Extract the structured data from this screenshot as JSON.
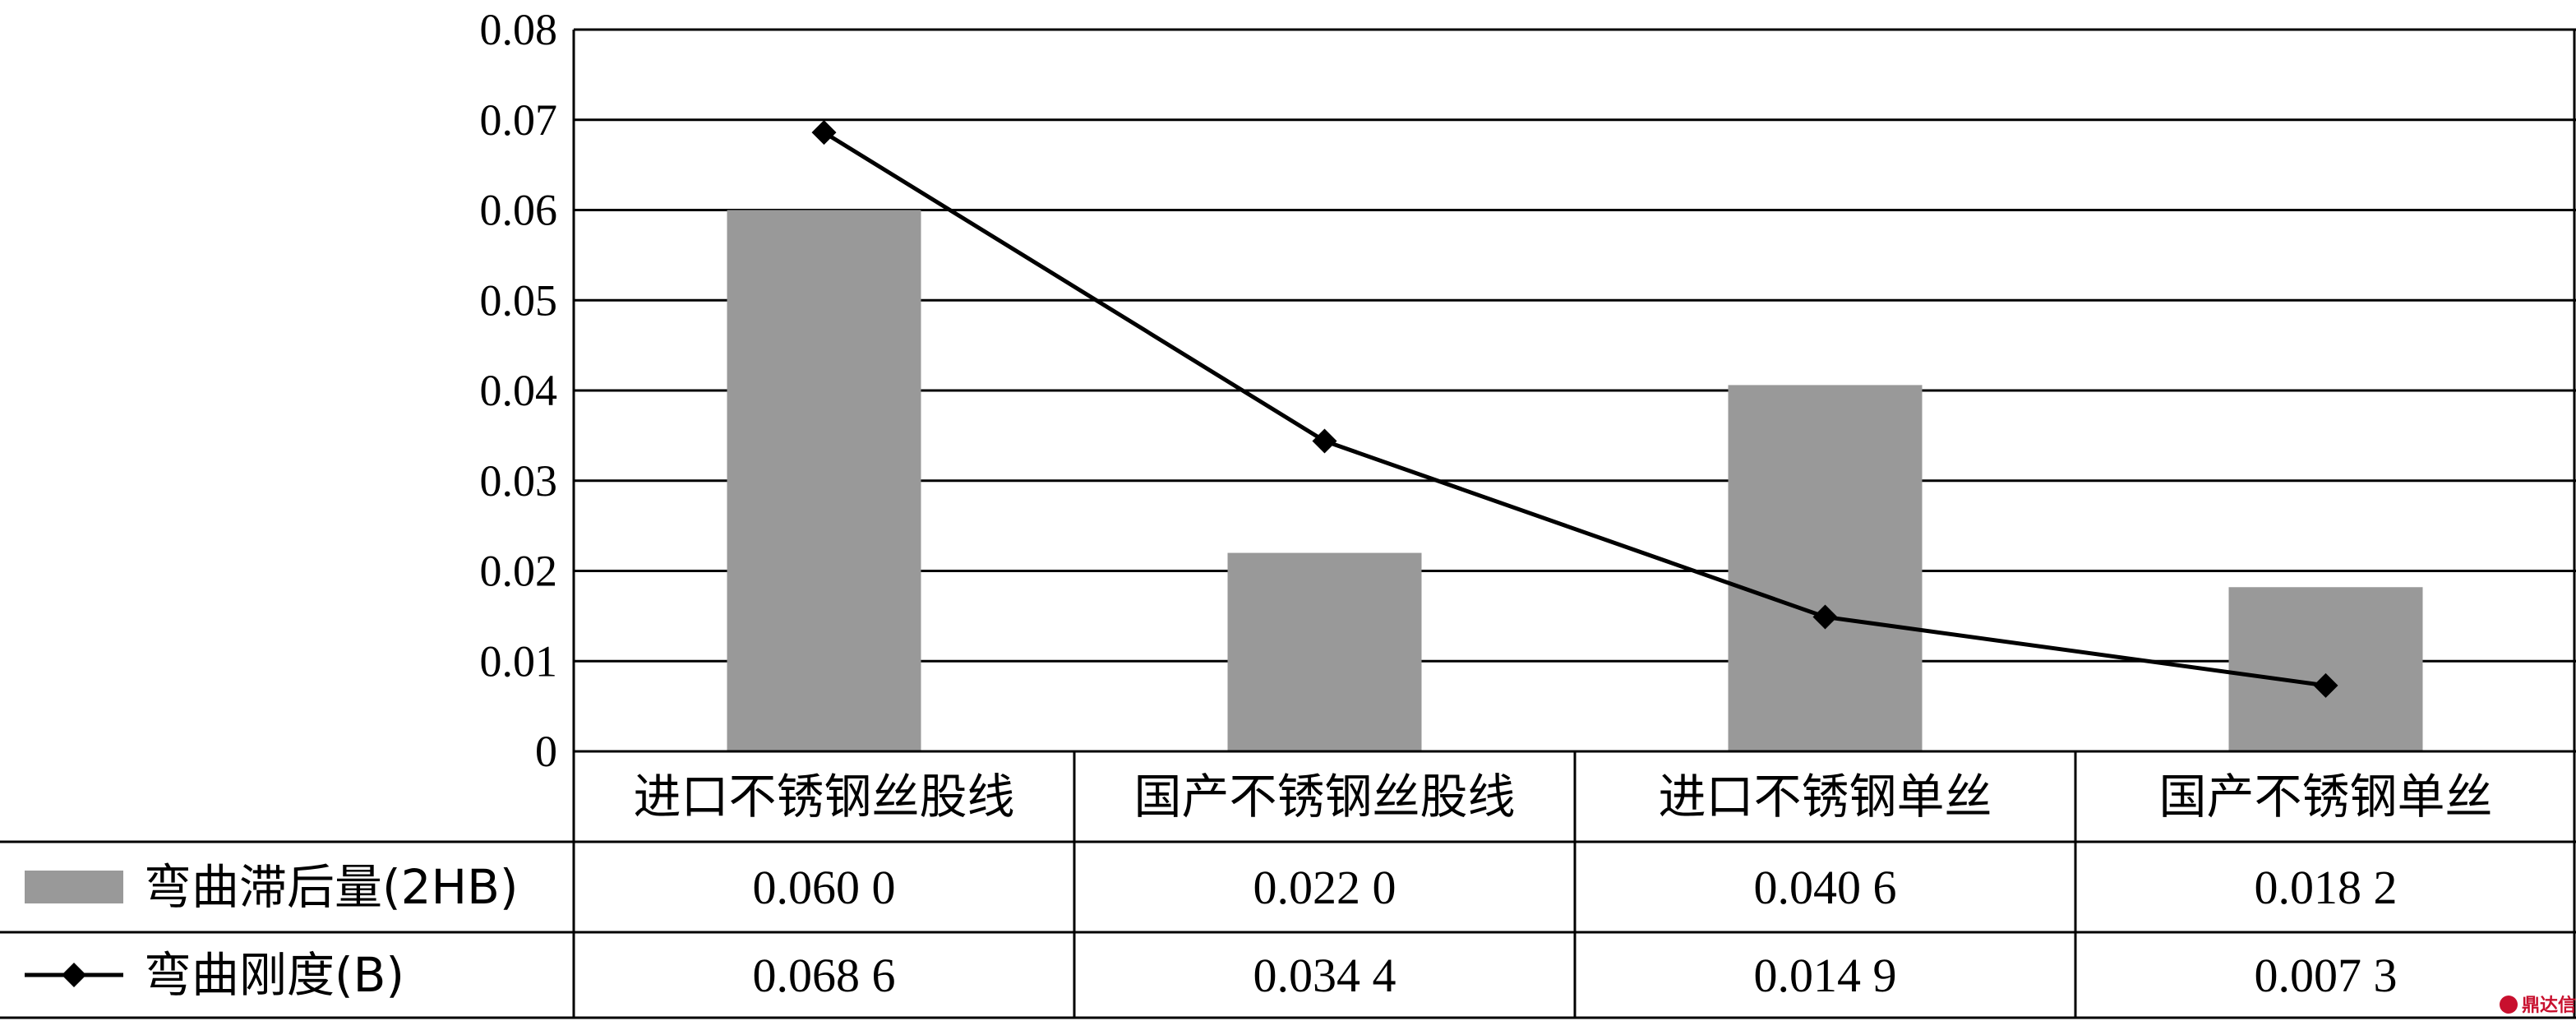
{
  "chart_data": {
    "type": "bar+line",
    "categories": [
      "进口不锈钢丝股线",
      "国产不锈钢丝股线",
      "进口不锈钢单丝",
      "国产不锈钢单丝"
    ],
    "series": [
      {
        "name": "弯曲滞后量(2HB)",
        "kind": "bar",
        "values": [
          0.06,
          0.022,
          0.0406,
          0.0182
        ],
        "labels": [
          "0.060 0",
          "0.022 0",
          "0.040 6",
          "0.018 2"
        ]
      },
      {
        "name": "弯曲刚度(B)",
        "kind": "line",
        "values": [
          0.0686,
          0.0344,
          0.0149,
          0.0073
        ],
        "labels": [
          "0.068 6",
          "0.034 4",
          "0.014 9",
          "0.007 3"
        ]
      }
    ],
    "y_ticks": [
      "0",
      "0.01",
      "0.02",
      "0.03",
      "0.04",
      "0.05",
      "0.06",
      "0.07",
      "0.08"
    ],
    "ylim": [
      0,
      0.08
    ],
    "grid": true,
    "legend": "data-table"
  },
  "colors": {
    "bar": "#999999",
    "line": "#000000",
    "grid": "#000000",
    "watermark": "#c8102e"
  },
  "watermark": {
    "text": "鼎达信"
  }
}
